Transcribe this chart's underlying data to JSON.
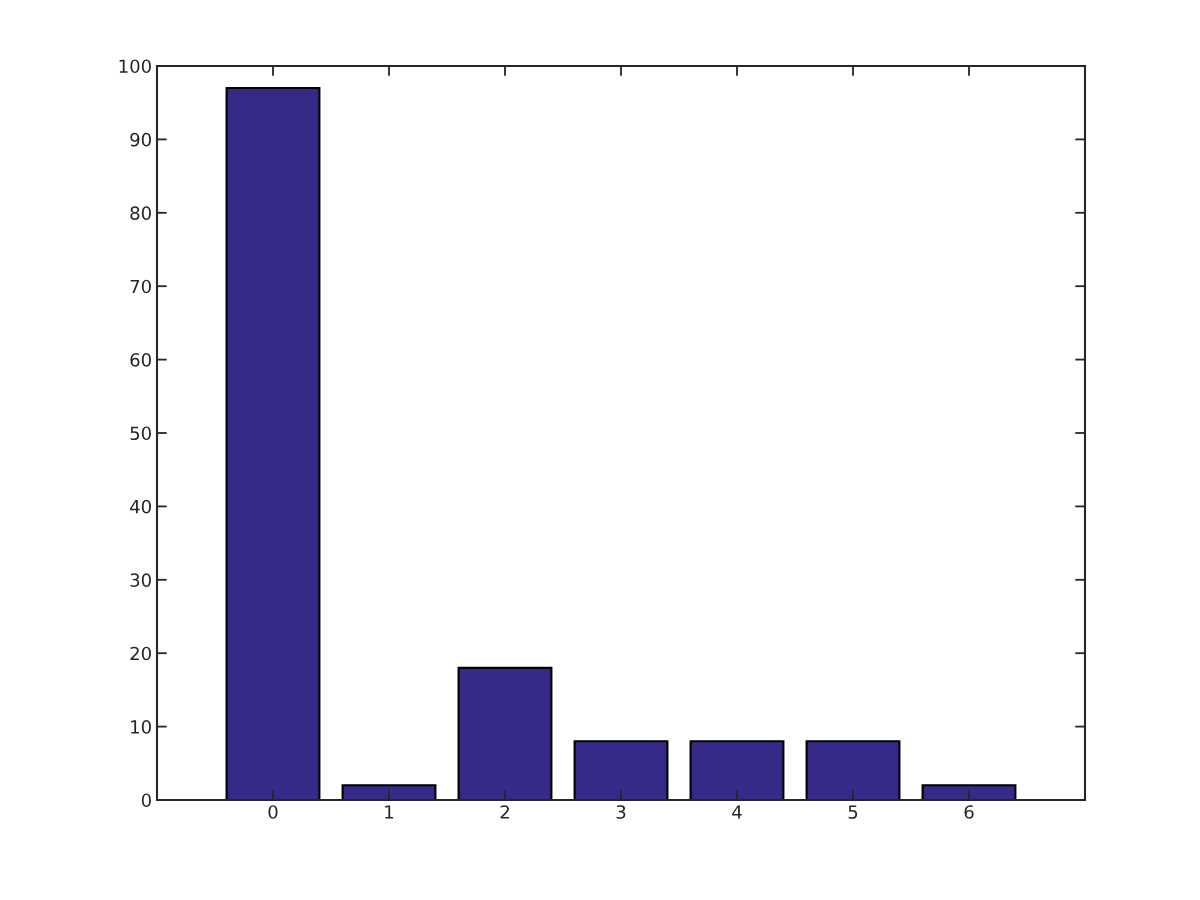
{
  "chart_data": {
    "type": "bar",
    "x": [
      0,
      1,
      2,
      3,
      4,
      5,
      6
    ],
    "values": [
      97,
      2,
      18,
      8,
      8,
      8,
      2
    ],
    "color": "#352a87",
    "xlim": [
      -1,
      7
    ],
    "xticks": [
      0,
      1,
      2,
      3,
      4,
      5,
      6
    ],
    "ylim": [
      0,
      100
    ],
    "yticks": [
      0,
      10,
      20,
      30,
      40,
      50,
      60,
      70,
      80,
      90,
      100
    ],
    "grid": false
  }
}
